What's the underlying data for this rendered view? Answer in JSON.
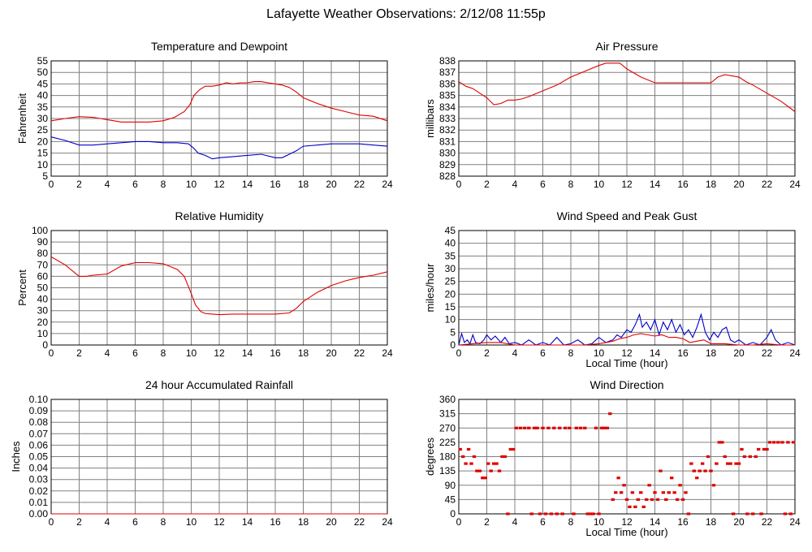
{
  "page": {
    "title": "Lafayette Weather Observations: 2/12/08 11:55p"
  },
  "colors": {
    "red": "#e00000",
    "blue": "#0000cc",
    "grid": "#808080",
    "frame": "#000000"
  },
  "chart_data": [
    {
      "id": "temp",
      "type": "line",
      "title": "Temperature and Dewpoint",
      "xlabel": "",
      "ylabel": "Fahrenheit",
      "xlim": [
        0,
        24
      ],
      "xticks": [
        0,
        2,
        4,
        6,
        8,
        10,
        12,
        14,
        16,
        18,
        20,
        22,
        24
      ],
      "ylim": [
        5,
        55
      ],
      "yticks": [
        5,
        10,
        15,
        20,
        25,
        30,
        35,
        40,
        45,
        50,
        55
      ],
      "series": [
        {
          "color": "red",
          "x": [
            0,
            1,
            2,
            3,
            4,
            5,
            6,
            7,
            8,
            8.8,
            9.5,
            9.9,
            10.2,
            10.6,
            11,
            11.5,
            12,
            12.5,
            13,
            13.5,
            14,
            14.5,
            15,
            15.5,
            16,
            16.5,
            17,
            17.5,
            18,
            19,
            20,
            21,
            22,
            23,
            24
          ],
          "y": [
            29,
            30,
            30.8,
            30.5,
            29.5,
            28.5,
            28.5,
            28.5,
            29,
            30.5,
            33,
            36,
            40,
            42.5,
            44,
            44,
            44.5,
            45.5,
            45,
            45.5,
            45.5,
            46,
            46,
            45.5,
            45,
            44.5,
            43.5,
            41.5,
            39,
            36.5,
            34.5,
            33,
            31.5,
            31,
            29
          ]
        },
        {
          "color": "blue",
          "x": [
            0,
            1,
            2,
            3,
            4,
            5,
            6,
            7,
            8,
            9,
            9.8,
            10.2,
            10.5,
            11,
            11.5,
            12,
            13,
            14,
            15,
            16,
            16.5,
            17,
            17.5,
            18,
            19,
            20,
            21,
            22,
            23,
            24
          ],
          "y": [
            22,
            20.5,
            18.5,
            18.5,
            19,
            19.5,
            20,
            20,
            19.5,
            19.5,
            19,
            17,
            15,
            14,
            12.5,
            13,
            13.5,
            14,
            14.5,
            13,
            13,
            14.5,
            16,
            18,
            18.5,
            19,
            19,
            19,
            18.5,
            18
          ]
        }
      ]
    },
    {
      "id": "pressure",
      "type": "line",
      "title": "Air Pressure",
      "xlabel": "",
      "ylabel": "millibars",
      "xlim": [
        0,
        24
      ],
      "xticks": [
        0,
        2,
        4,
        6,
        8,
        10,
        12,
        14,
        16,
        18,
        20,
        22,
        24
      ],
      "ylim": [
        828,
        838
      ],
      "yticks": [
        828,
        829,
        830,
        831,
        832,
        833,
        834,
        835,
        836,
        837,
        838
      ],
      "series": [
        {
          "color": "red",
          "x": [
            0,
            0.5,
            1,
            1.5,
            2,
            2.5,
            3,
            3.5,
            4,
            4.5,
            5,
            6,
            7,
            8,
            9,
            10,
            10.5,
            11,
            11.5,
            12,
            13,
            14,
            15,
            16,
            17,
            18,
            18.5,
            19,
            20,
            20.5,
            21,
            22,
            23,
            24
          ],
          "y": [
            836.2,
            835.8,
            835.6,
            835.2,
            834.8,
            834.2,
            834.3,
            834.6,
            834.6,
            834.7,
            834.9,
            835.4,
            835.9,
            836.6,
            837.1,
            837.6,
            837.8,
            837.8,
            837.8,
            837.3,
            836.6,
            836.1,
            836.1,
            836.1,
            836.1,
            836.1,
            836.6,
            836.8,
            836.6,
            836.2,
            835.9,
            835.2,
            834.5,
            833.6
          ]
        }
      ]
    },
    {
      "id": "humidity",
      "type": "line",
      "title": "Relative Humidity",
      "xlabel": "",
      "ylabel": "Percent",
      "xlim": [
        0,
        24
      ],
      "xticks": [
        0,
        2,
        4,
        6,
        8,
        10,
        12,
        14,
        16,
        18,
        20,
        22,
        24
      ],
      "ylim": [
        0,
        100
      ],
      "yticks": [
        0,
        10,
        20,
        30,
        40,
        50,
        60,
        70,
        80,
        90,
        100
      ],
      "series": [
        {
          "color": "red",
          "x": [
            0,
            1,
            2,
            2.5,
            3,
            4,
            5,
            6,
            7,
            8,
            9,
            9.5,
            10,
            10.3,
            10.7,
            11,
            11.5,
            12,
            13,
            14,
            15,
            16,
            17,
            17.5,
            18,
            19,
            20,
            21,
            22,
            23,
            24
          ],
          "y": [
            77,
            70,
            60,
            60,
            61,
            62,
            69,
            72,
            72,
            71,
            66,
            60,
            45,
            35,
            29,
            27.5,
            27,
            26.5,
            27,
            27,
            27,
            27,
            28,
            32,
            38,
            46,
            52,
            56,
            59,
            61,
            64
          ]
        }
      ]
    },
    {
      "id": "wind",
      "type": "line",
      "title": "Wind Speed and Peak Gust",
      "xlabel": "Local Time (hour)",
      "ylabel": "miles/hour",
      "xlim": [
        0,
        24
      ],
      "xticks": [
        0,
        2,
        4,
        6,
        8,
        10,
        12,
        14,
        16,
        18,
        20,
        22,
        24
      ],
      "ylim": [
        0,
        45
      ],
      "yticks": [
        0,
        5,
        10,
        15,
        20,
        25,
        30,
        35,
        40,
        45
      ],
      "series": [
        {
          "color": "blue",
          "x": [
            0,
            0.2,
            0.4,
            0.6,
            0.8,
            1,
            1.2,
            1.5,
            1.8,
            2,
            2.3,
            2.6,
            3,
            3.3,
            3.6,
            4,
            4.5,
            5,
            5.5,
            6,
            6.5,
            7,
            7.5,
            8,
            8.5,
            9,
            9.5,
            10,
            10.5,
            11,
            11.3,
            11.6,
            12,
            12.3,
            12.6,
            12.9,
            13.1,
            13.4,
            13.7,
            14,
            14.3,
            14.6,
            14.9,
            15.2,
            15.5,
            15.8,
            16.1,
            16.4,
            16.7,
            17,
            17.3,
            17.6,
            17.9,
            18.2,
            18.5,
            18.8,
            19.1,
            19.4,
            19.7,
            20,
            20.5,
            21,
            21.5,
            22,
            22.3,
            22.6,
            23,
            23.5,
            24
          ],
          "y": [
            0,
            4.5,
            1,
            2,
            0.5,
            4,
            1,
            0.5,
            2,
            4,
            2,
            3.5,
            1,
            3,
            0.5,
            1,
            0,
            2,
            0,
            1,
            0,
            3,
            0,
            0.5,
            2,
            0,
            0.5,
            3,
            1,
            2,
            4,
            3,
            6,
            5,
            8,
            12,
            7,
            9,
            6,
            10,
            4,
            9,
            6,
            10,
            5,
            8,
            4,
            6,
            3,
            7,
            12,
            5,
            2,
            5,
            3,
            6,
            7,
            2,
            1,
            2,
            0,
            1,
            0,
            3,
            6,
            2,
            0,
            1,
            0
          ]
        },
        {
          "color": "red",
          "x": [
            0,
            1,
            2,
            3,
            4,
            5,
            6,
            7,
            8,
            9,
            10,
            10.5,
            11,
            11.5,
            12,
            12.5,
            13,
            13.5,
            14,
            14.5,
            15,
            15.5,
            16,
            16.5,
            17,
            17.5,
            18,
            19,
            20,
            21,
            22,
            23,
            24
          ],
          "y": [
            0,
            0.5,
            1,
            1,
            0,
            0,
            0,
            0,
            0,
            0,
            0.5,
            1,
            1.5,
            2.5,
            3,
            4,
            4.5,
            4,
            3.5,
            4,
            3,
            3,
            2.5,
            1,
            1.5,
            2,
            0.5,
            0.5,
            0,
            0,
            0.5,
            0,
            0
          ]
        }
      ]
    },
    {
      "id": "rain",
      "type": "line",
      "title": "24 hour Accumulated Rainfall",
      "xlabel": "",
      "ylabel": "Inches",
      "xlim": [
        0,
        24
      ],
      "xticks": [
        0,
        2,
        4,
        6,
        8,
        10,
        12,
        14,
        16,
        18,
        20,
        22,
        24
      ],
      "ylim": [
        0,
        0.1
      ],
      "yticks": [
        "0.00",
        "0.01",
        "0.02",
        "0.03",
        "0.04",
        "0.05",
        "0.06",
        "0.07",
        "0.08",
        "0.09",
        "0.10"
      ],
      "series": [
        {
          "color": "red",
          "x": [
            0,
            24
          ],
          "y": [
            0,
            0
          ]
        }
      ]
    },
    {
      "id": "direction",
      "type": "scatter",
      "title": "Wind Direction",
      "xlabel": "Local Time (hour)",
      "ylabel": "degrees",
      "xlim": [
        0,
        24
      ],
      "xticks": [
        0,
        2,
        4,
        6,
        8,
        10,
        12,
        14,
        16,
        18,
        20,
        22,
        24
      ],
      "ylim": [
        0,
        360
      ],
      "yticks": [
        0,
        45,
        90,
        135,
        180,
        225,
        270,
        315,
        360
      ],
      "series": [
        {
          "color": "red",
          "points": [
            [
              0.1,
              203
            ],
            [
              0.3,
              180
            ],
            [
              0.5,
              158
            ],
            [
              0.7,
              203
            ],
            [
              0.9,
              158
            ],
            [
              1.1,
              180
            ],
            [
              1.3,
              135
            ],
            [
              1.5,
              135
            ],
            [
              1.7,
              113
            ],
            [
              1.9,
              113
            ],
            [
              2.1,
              158
            ],
            [
              2.3,
              135
            ],
            [
              2.5,
              158
            ],
            [
              2.7,
              158
            ],
            [
              2.9,
              135
            ],
            [
              3.1,
              180
            ],
            [
              3.3,
              180
            ],
            [
              3.5,
              0
            ],
            [
              3.7,
              203
            ],
            [
              3.9,
              203
            ],
            [
              4.1,
              270
            ],
            [
              4.4,
              270
            ],
            [
              4.7,
              270
            ],
            [
              5.0,
              270
            ],
            [
              5.2,
              0
            ],
            [
              5.4,
              270
            ],
            [
              5.6,
              270
            ],
            [
              5.8,
              0
            ],
            [
              6.0,
              270
            ],
            [
              6.2,
              0
            ],
            [
              6.4,
              270
            ],
            [
              6.6,
              0
            ],
            [
              6.8,
              270
            ],
            [
              7.0,
              0
            ],
            [
              7.2,
              270
            ],
            [
              7.4,
              0
            ],
            [
              7.6,
              270
            ],
            [
              7.9,
              270
            ],
            [
              8.2,
              0
            ],
            [
              8.4,
              270
            ],
            [
              8.7,
              270
            ],
            [
              9.0,
              270
            ],
            [
              9.2,
              0
            ],
            [
              9.4,
              0
            ],
            [
              9.6,
              0
            ],
            [
              9.8,
              270
            ],
            [
              10.0,
              0
            ],
            [
              10.2,
              270
            ],
            [
              10.4,
              270
            ],
            [
              10.6,
              270
            ],
            [
              10.8,
              315
            ],
            [
              11.0,
              45
            ],
            [
              11.2,
              67
            ],
            [
              11.4,
              113
            ],
            [
              11.6,
              67
            ],
            [
              11.8,
              90
            ],
            [
              12.0,
              45
            ],
            [
              12.2,
              22
            ],
            [
              12.4,
              67
            ],
            [
              12.6,
              22
            ],
            [
              12.8,
              45
            ],
            [
              13.0,
              67
            ],
            [
              13.2,
              22
            ],
            [
              13.4,
              45
            ],
            [
              13.6,
              90
            ],
            [
              13.8,
              45
            ],
            [
              14.0,
              67
            ],
            [
              14.2,
              45
            ],
            [
              14.4,
              135
            ],
            [
              14.6,
              67
            ],
            [
              14.8,
              45
            ],
            [
              15.0,
              67
            ],
            [
              15.2,
              113
            ],
            [
              15.4,
              67
            ],
            [
              15.6,
              45
            ],
            [
              15.8,
              90
            ],
            [
              16.0,
              45
            ],
            [
              16.2,
              67
            ],
            [
              16.4,
              0
            ],
            [
              16.6,
              158
            ],
            [
              16.8,
              135
            ],
            [
              17.0,
              113
            ],
            [
              17.2,
              135
            ],
            [
              17.4,
              158
            ],
            [
              17.6,
              135
            ],
            [
              17.8,
              180
            ],
            [
              18.0,
              135
            ],
            [
              18.2,
              90
            ],
            [
              18.4,
              158
            ],
            [
              18.6,
              225
            ],
            [
              18.8,
              225
            ],
            [
              19.0,
              180
            ],
            [
              19.2,
              158
            ],
            [
              19.4,
              158
            ],
            [
              19.6,
              0
            ],
            [
              19.8,
              158
            ],
            [
              20.0,
              158
            ],
            [
              20.2,
              203
            ],
            [
              20.4,
              180
            ],
            [
              20.6,
              0
            ],
            [
              20.8,
              180
            ],
            [
              21.0,
              0
            ],
            [
              21.2,
              180
            ],
            [
              21.4,
              203
            ],
            [
              21.6,
              0
            ],
            [
              21.8,
              203
            ],
            [
              22.0,
              203
            ],
            [
              22.2,
              225
            ],
            [
              22.5,
              225
            ],
            [
              22.8,
              225
            ],
            [
              23.1,
              225
            ],
            [
              23.3,
              0
            ],
            [
              23.5,
              225
            ],
            [
              23.7,
              0
            ],
            [
              23.9,
              225
            ]
          ]
        }
      ]
    }
  ]
}
